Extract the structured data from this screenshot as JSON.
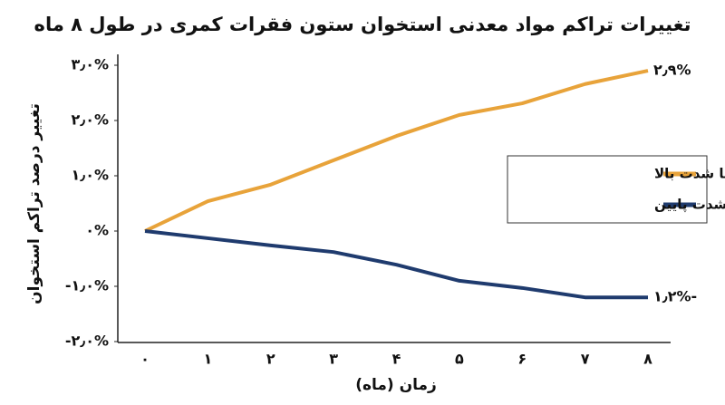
{
  "chart_data": {
    "type": "line",
    "title": "تغییرات تراکم مواد معدنی استخوان ستون فقرات کمری در طول ۸ ماه",
    "y_label": "تغییر درصد تراکم استخوان",
    "x_label": "زمان (ماه)",
    "categories": [
      "۰",
      "۱",
      "۲",
      "۳",
      "۴",
      "۵",
      "۶",
      "۷",
      "۸"
    ],
    "series": [
      {
        "name": "تمرین با شدت بالا",
        "color": "#e8a33a",
        "values": [
          0,
          0.54,
          0.84,
          1.28,
          1.72,
          2.1,
          2.31,
          2.66,
          2.9
        ],
        "value_labels": [
          null,
          null,
          null,
          null,
          null,
          null,
          null,
          null,
          "۲٫۹%"
        ]
      },
      {
        "name": "کنترل با شدت پایین",
        "color": "#1f3b6e",
        "values": [
          0,
          -0.13,
          -0.26,
          -0.38,
          -0.61,
          -0.9,
          -1.03,
          -1.2,
          -1.2
        ],
        "value_labels": [
          null,
          null,
          null,
          null,
          null,
          null,
          null,
          null,
          "۱٫۲%-"
        ]
      }
    ],
    "ylim": [
      -2.0,
      3.0
    ],
    "yticks": [
      {
        "value": -2.0,
        "label": "-۲٫۰%"
      },
      {
        "value": -1.0,
        "label": "-۱٫۰%"
      },
      {
        "value": 0,
        "label": "۰%"
      },
      {
        "value": 1.0,
        "label": "۱٫۰%"
      },
      {
        "value": 2.0,
        "label": "۲٫۰%"
      },
      {
        "value": 3.0,
        "label": "۳٫۰%"
      }
    ],
    "legend": "right",
    "grid": false
  }
}
